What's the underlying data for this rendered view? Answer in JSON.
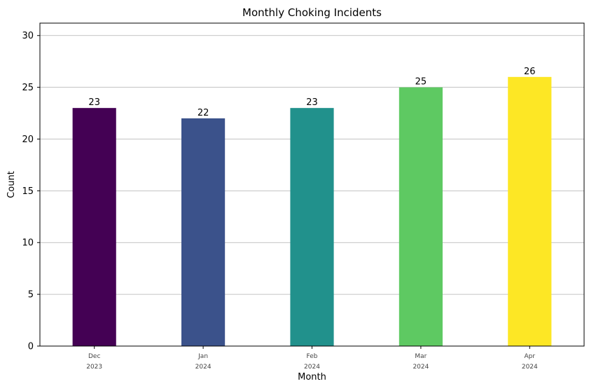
{
  "chart_data": {
    "type": "bar",
    "title": "Monthly Choking Incidents",
    "xlabel": "Month",
    "ylabel": "Count",
    "categories": [
      [
        "Dec",
        "2023"
      ],
      [
        "Jan",
        "2024"
      ],
      [
        "Feb",
        "2024"
      ],
      [
        "Mar",
        "2024"
      ],
      [
        "Apr",
        "2024"
      ]
    ],
    "values": [
      23,
      22,
      23,
      25,
      26
    ],
    "colors": [
      "#440154",
      "#3b528b",
      "#21918c",
      "#5ec962",
      "#fde725"
    ],
    "ylim": [
      0,
      31.2
    ],
    "yticks": [
      0,
      5,
      10,
      15,
      20,
      25,
      30
    ],
    "grid": "horizontal",
    "legend": "none"
  }
}
